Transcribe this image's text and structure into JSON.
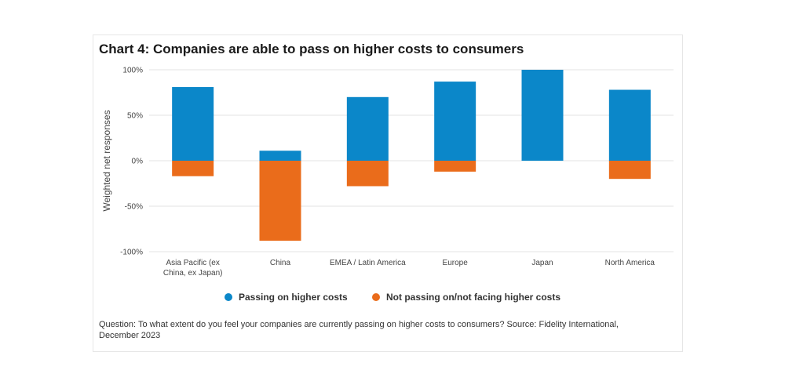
{
  "title": "Chart 4: Companies are able to pass on higher costs to consumers",
  "footnote": "Question: To what extent do you feel your companies are currently passing on higher costs to consumers? Source: Fidelity International, December 2023",
  "chart_data": {
    "type": "bar",
    "stacked": true,
    "categories": [
      [
        "Asia Pacific (ex",
        "China, ex Japan)"
      ],
      [
        "China"
      ],
      [
        "EMEA / Latin America"
      ],
      [
        "Europe"
      ],
      [
        "Japan"
      ],
      [
        "North America"
      ]
    ],
    "series": [
      {
        "name": "Passing on higher costs",
        "color": "#0b87c9",
        "values": [
          81,
          11,
          70,
          87,
          100,
          78
        ]
      },
      {
        "name": "Not passing on/not facing higher costs",
        "color": "#ea6c1b",
        "values": [
          -17,
          -88,
          -28,
          -12,
          0,
          -20
        ]
      }
    ],
    "ylabel": "Weighted net responses",
    "ylim": [
      -100,
      100
    ],
    "yticks": [
      100,
      50,
      0,
      -50,
      -100
    ],
    "ytick_labels": [
      "100%",
      "50%",
      "0%",
      "-50%",
      "-100%"
    ],
    "grid": true,
    "legend_position": "bottom"
  }
}
